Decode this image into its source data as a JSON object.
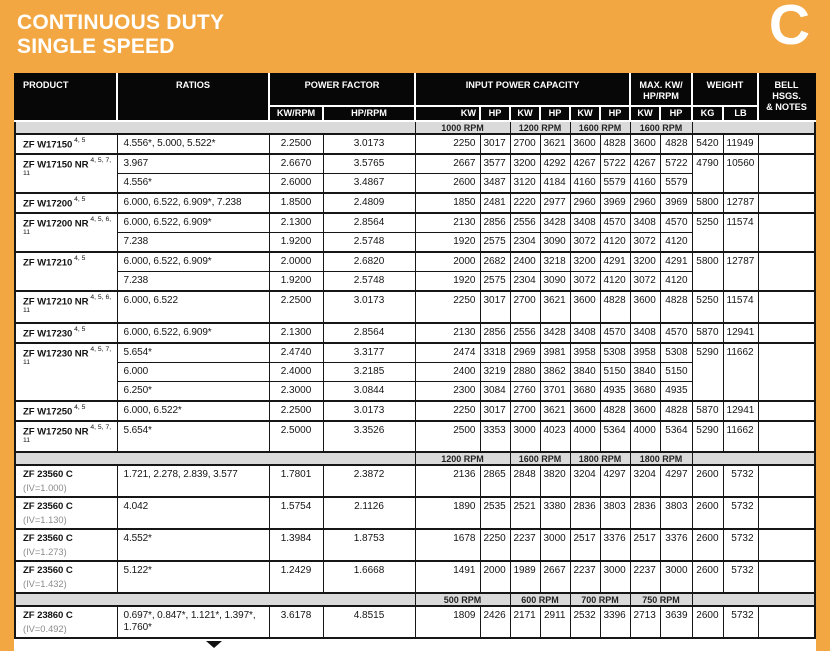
{
  "page": {
    "title_line1": "CONTINUOUS DUTY",
    "title_line2": "SINGLE SPEED",
    "section_letter": "C",
    "colors": {
      "background_orange": "#F2A742",
      "band_gray": "#DADADA",
      "header_black": "#070707"
    }
  },
  "table": {
    "header": {
      "product": "PRODUCT",
      "ratios": "RATIOS",
      "power_factor": "POWER FACTOR",
      "kw_rpm": "KW/RPM",
      "hp_rpm": "HP/RPM",
      "input_power_capacity": "INPUT POWER CAPACITY",
      "max_line1": "MAX. KW/",
      "max_line2": "HP/RPM",
      "weight": "WEIGHT",
      "bell_line1": "BELL HSGS.",
      "bell_line2": "& NOTES",
      "kw": "KW",
      "hp": "HP",
      "kg": "KG",
      "lb": "LB"
    },
    "rows": [
      {
        "kind": "band",
        "labels": [
          "1000 RPM",
          "1200 RPM",
          "1600 RPM",
          "1600 RPM"
        ]
      },
      {
        "kind": "group",
        "product": "ZF W17150",
        "sup": "4, 5",
        "kg": "5420",
        "lb": "11949",
        "variants": [
          {
            "ratios": "4.556*, 5.000, 5.522*",
            "kw_rpm": "2.2500",
            "hp_rpm": "3.0173",
            "values": [
              "2250",
              "3017",
              "2700",
              "3621",
              "3600",
              "4828",
              "3600",
              "4828"
            ]
          }
        ]
      },
      {
        "kind": "group",
        "product": "ZF W17150 NR",
        "sup": "4, 5, 7, 11",
        "kg": "4790",
        "lb": "10560",
        "variants": [
          {
            "ratios": "3.967",
            "kw_rpm": "2.6670",
            "hp_rpm": "3.5765",
            "values": [
              "2667",
              "3577",
              "3200",
              "4292",
              "4267",
              "5722",
              "4267",
              "5722"
            ]
          },
          {
            "ratios": "4.556*",
            "kw_rpm": "2.6000",
            "hp_rpm": "3.4867",
            "values": [
              "2600",
              "3487",
              "3120",
              "4184",
              "4160",
              "5579",
              "4160",
              "5579"
            ]
          }
        ]
      },
      {
        "kind": "group",
        "product": "ZF W17200",
        "sup": "4, 5",
        "kg": "5800",
        "lb": "12787",
        "variants": [
          {
            "ratios": "6.000, 6.522, 6.909*, 7.238",
            "kw_rpm": "1.8500",
            "hp_rpm": "2.4809",
            "values": [
              "1850",
              "2481",
              "2220",
              "2977",
              "2960",
              "3969",
              "2960",
              "3969"
            ]
          }
        ]
      },
      {
        "kind": "group",
        "product": "ZF W17200 NR",
        "sup": "4, 5, 6, 11",
        "kg": "5250",
        "lb": "11574",
        "variants": [
          {
            "ratios": "6.000, 6.522, 6.909*",
            "kw_rpm": "2.1300",
            "hp_rpm": "2.8564",
            "values": [
              "2130",
              "2856",
              "2556",
              "3428",
              "3408",
              "4570",
              "3408",
              "4570"
            ]
          },
          {
            "ratios": "7.238",
            "kw_rpm": "1.9200",
            "hp_rpm": "2.5748",
            "values": [
              "1920",
              "2575",
              "2304",
              "3090",
              "3072",
              "4120",
              "3072",
              "4120"
            ]
          }
        ]
      },
      {
        "kind": "group",
        "product": "ZF W17210",
        "sup": "4, 5",
        "kg": "5800",
        "lb": "12787",
        "variants": [
          {
            "ratios": "6.000, 6.522, 6.909*",
            "kw_rpm": "2.0000",
            "hp_rpm": "2.6820",
            "values": [
              "2000",
              "2682",
              "2400",
              "3218",
              "3200",
              "4291",
              "3200",
              "4291"
            ]
          },
          {
            "ratios": "7.238",
            "kw_rpm": "1.9200",
            "hp_rpm": "2.5748",
            "values": [
              "1920",
              "2575",
              "2304",
              "3090",
              "3072",
              "4120",
              "3072",
              "4120"
            ]
          }
        ]
      },
      {
        "kind": "group",
        "product": "ZF W17210 NR",
        "sup": "4, 5, 6, 11",
        "kg": "5250",
        "lb": "11574",
        "variants": [
          {
            "ratios": "6.000, 6.522",
            "kw_rpm": "2.2500",
            "hp_rpm": "3.0173",
            "values": [
              "2250",
              "3017",
              "2700",
              "3621",
              "3600",
              "4828",
              "3600",
              "4828"
            ]
          }
        ]
      },
      {
        "kind": "group",
        "product": "ZF W17230",
        "sup": "4, 5",
        "kg": "5870",
        "lb": "12941",
        "variants": [
          {
            "ratios": "6.000, 6.522, 6.909*",
            "kw_rpm": "2.1300",
            "hp_rpm": "2.8564",
            "values": [
              "2130",
              "2856",
              "2556",
              "3428",
              "3408",
              "4570",
              "3408",
              "4570"
            ]
          }
        ]
      },
      {
        "kind": "group",
        "product": "ZF W17230 NR",
        "sup": "4, 5, 7, 11",
        "kg": "5290",
        "lb": "11662",
        "variants": [
          {
            "ratios": "5.654*",
            "kw_rpm": "2.4740",
            "hp_rpm": "3.3177",
            "values": [
              "2474",
              "3318",
              "2969",
              "3981",
              "3958",
              "5308",
              "3958",
              "5308"
            ]
          },
          {
            "ratios": "6.000",
            "kw_rpm": "2.4000",
            "hp_rpm": "3.2185",
            "values": [
              "2400",
              "3219",
              "2880",
              "3862",
              "3840",
              "5150",
              "3840",
              "5150"
            ]
          },
          {
            "ratios": "6.250*",
            "kw_rpm": "2.3000",
            "hp_rpm": "3.0844",
            "values": [
              "2300",
              "3084",
              "2760",
              "3701",
              "3680",
              "4935",
              "3680",
              "4935"
            ]
          }
        ]
      },
      {
        "kind": "group",
        "product": "ZF W17250",
        "sup": "4, 5",
        "kg": "5870",
        "lb": "12941",
        "variants": [
          {
            "ratios": "6.000, 6.522*",
            "kw_rpm": "2.2500",
            "hp_rpm": "3.0173",
            "values": [
              "2250",
              "3017",
              "2700",
              "3621",
              "3600",
              "4828",
              "3600",
              "4828"
            ]
          }
        ]
      },
      {
        "kind": "group",
        "product": "ZF W17250 NR",
        "sup": "4, 5, 7, 11",
        "kg": "5290",
        "lb": "11662",
        "variants": [
          {
            "ratios": "5.654*",
            "kw_rpm": "2.5000",
            "hp_rpm": "3.3526",
            "values": [
              "2500",
              "3353",
              "3000",
              "4023",
              "4000",
              "5364",
              "4000",
              "5364"
            ]
          }
        ]
      },
      {
        "kind": "band",
        "labels": [
          "1200 RPM",
          "1600 RPM",
          "1800 RPM",
          "1800 RPM"
        ]
      },
      {
        "kind": "group",
        "tall": true,
        "product": "ZF 23560 C",
        "iv": "(IV=1.000)",
        "kg": "2600",
        "lb": "5732",
        "variants": [
          {
            "ratios": "1.721, 2.278, 2.839, 3.577",
            "kw_rpm": "1.7801",
            "hp_rpm": "2.3872",
            "values": [
              "2136",
              "2865",
              "2848",
              "3820",
              "3204",
              "4297",
              "3204",
              "4297"
            ]
          }
        ]
      },
      {
        "kind": "group",
        "tall": true,
        "product": "ZF 23560 C",
        "iv": "(IV=1.130)",
        "kg": "2600",
        "lb": "5732",
        "variants": [
          {
            "ratios": "4.042",
            "kw_rpm": "1.5754",
            "hp_rpm": "2.1126",
            "values": [
              "1890",
              "2535",
              "2521",
              "3380",
              "2836",
              "3803",
              "2836",
              "3803"
            ]
          }
        ]
      },
      {
        "kind": "group",
        "tall": true,
        "product": "ZF 23560 C",
        "iv": "(IV=1.273)",
        "kg": "2600",
        "lb": "5732",
        "variants": [
          {
            "ratios": "4.552*",
            "kw_rpm": "1.3984",
            "hp_rpm": "1.8753",
            "values": [
              "1678",
              "2250",
              "2237",
              "3000",
              "2517",
              "3376",
              "2517",
              "3376"
            ]
          }
        ]
      },
      {
        "kind": "group",
        "tall": true,
        "product": "ZF 23560 C",
        "iv": "(IV=1.432)",
        "kg": "2600",
        "lb": "5732",
        "variants": [
          {
            "ratios": "5.122*",
            "kw_rpm": "1.2429",
            "hp_rpm": "1.6668",
            "values": [
              "1491",
              "2000",
              "1989",
              "2667",
              "2237",
              "3000",
              "2237",
              "3000"
            ]
          }
        ]
      },
      {
        "kind": "band",
        "labels": [
          "500 RPM",
          "600 RPM",
          "700 RPM",
          "750 RPM"
        ]
      },
      {
        "kind": "group",
        "tall": true,
        "product": "ZF 23860 C",
        "iv": "(IV=0.492)",
        "kg": "2600",
        "lb": "5732",
        "variants": [
          {
            "ratios": "0.697*, 0.847*, 1.121*, 1.397*, 1.760*",
            "kw_rpm": "3.6178",
            "hp_rpm": "4.8515",
            "values": [
              "1809",
              "2426",
              "2171",
              "2911",
              "2532",
              "3396",
              "2713",
              "3639"
            ]
          }
        ]
      }
    ]
  }
}
